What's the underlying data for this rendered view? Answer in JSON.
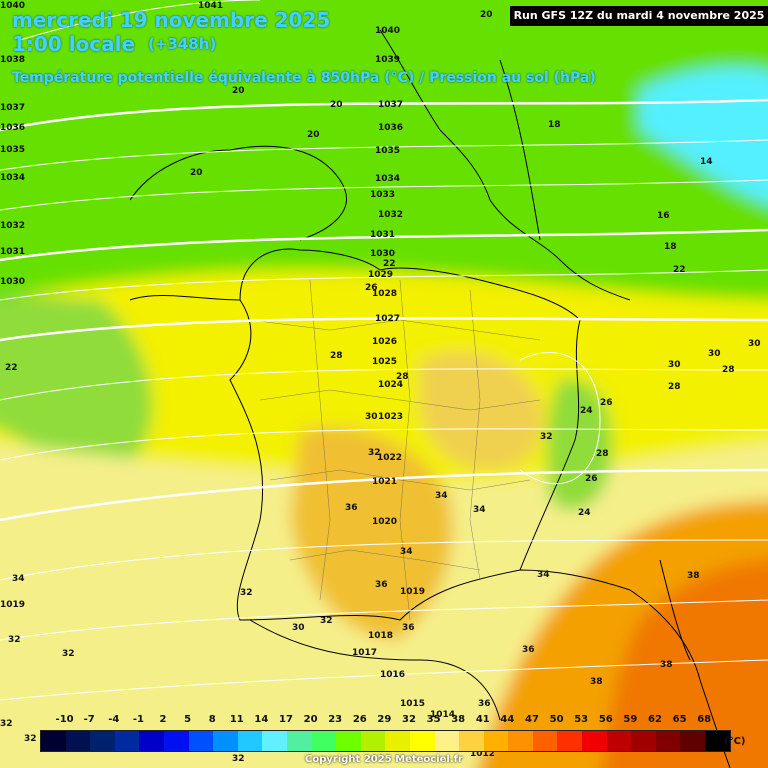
{
  "header": {
    "date": "mercredi 19 novembre 2025",
    "time": "1:00 locale",
    "offset": "(+348h)",
    "subtitle": "Température potentielle équivalente à 850hPa (°C) / Pression au sol (hPa)",
    "run": "Run GFS 12Z du mardi 4 novembre 2025"
  },
  "colors": {
    "green_dark": "#66e000",
    "green_light": "#8fdc3a",
    "cyan": "#55f0ff",
    "yellow": "#f3f000",
    "pale_yellow": "#f5ef8a",
    "gold": "#f0c030",
    "orange": "#f3a000",
    "dark_orange": "#f07800",
    "isobar": "#ffffff",
    "border": "#000000"
  },
  "legend": {
    "unit": "(°C)",
    "labels": [
      "-10",
      "-7",
      "-4",
      "-1",
      "2",
      "5",
      "8",
      "11",
      "14",
      "17",
      "20",
      "23",
      "26",
      "29",
      "32",
      "35",
      "38",
      "41",
      "44",
      "47",
      "50",
      "53",
      "56",
      "59",
      "62",
      "65",
      "68"
    ],
    "colors": [
      "#000033",
      "#001050",
      "#002070",
      "#002aa0",
      "#0000c8",
      "#0010f0",
      "#0050ff",
      "#0090ff",
      "#20c8ff",
      "#60f0ff",
      "#50f0a0",
      "#40ff60",
      "#70ff00",
      "#b0f000",
      "#e8f000",
      "#ffff00",
      "#fff08a",
      "#ffd040",
      "#ffb000",
      "#ff9000",
      "#ff6000",
      "#ff3000",
      "#f00000",
      "#c00000",
      "#a00000",
      "#800000",
      "#600000",
      "#000000"
    ]
  },
  "isobars": [
    "1041",
    "1040",
    "1039",
    "1038",
    "1037",
    "1036",
    "1035",
    "1034",
    "1033",
    "1032",
    "1031",
    "1030",
    "1029",
    "1028",
    "1027",
    "1026",
    "1025",
    "1024",
    "1023",
    "1022",
    "1021",
    "1020",
    "1019",
    "1018",
    "1017",
    "1016",
    "1015",
    "1014",
    "1012"
  ],
  "temps_text": [
    "20",
    "18",
    "16",
    "14",
    "22",
    "24",
    "26",
    "28",
    "30",
    "32",
    "34",
    "36",
    "38"
  ],
  "copyright": "Copyright 2025 Meteociel.fr"
}
